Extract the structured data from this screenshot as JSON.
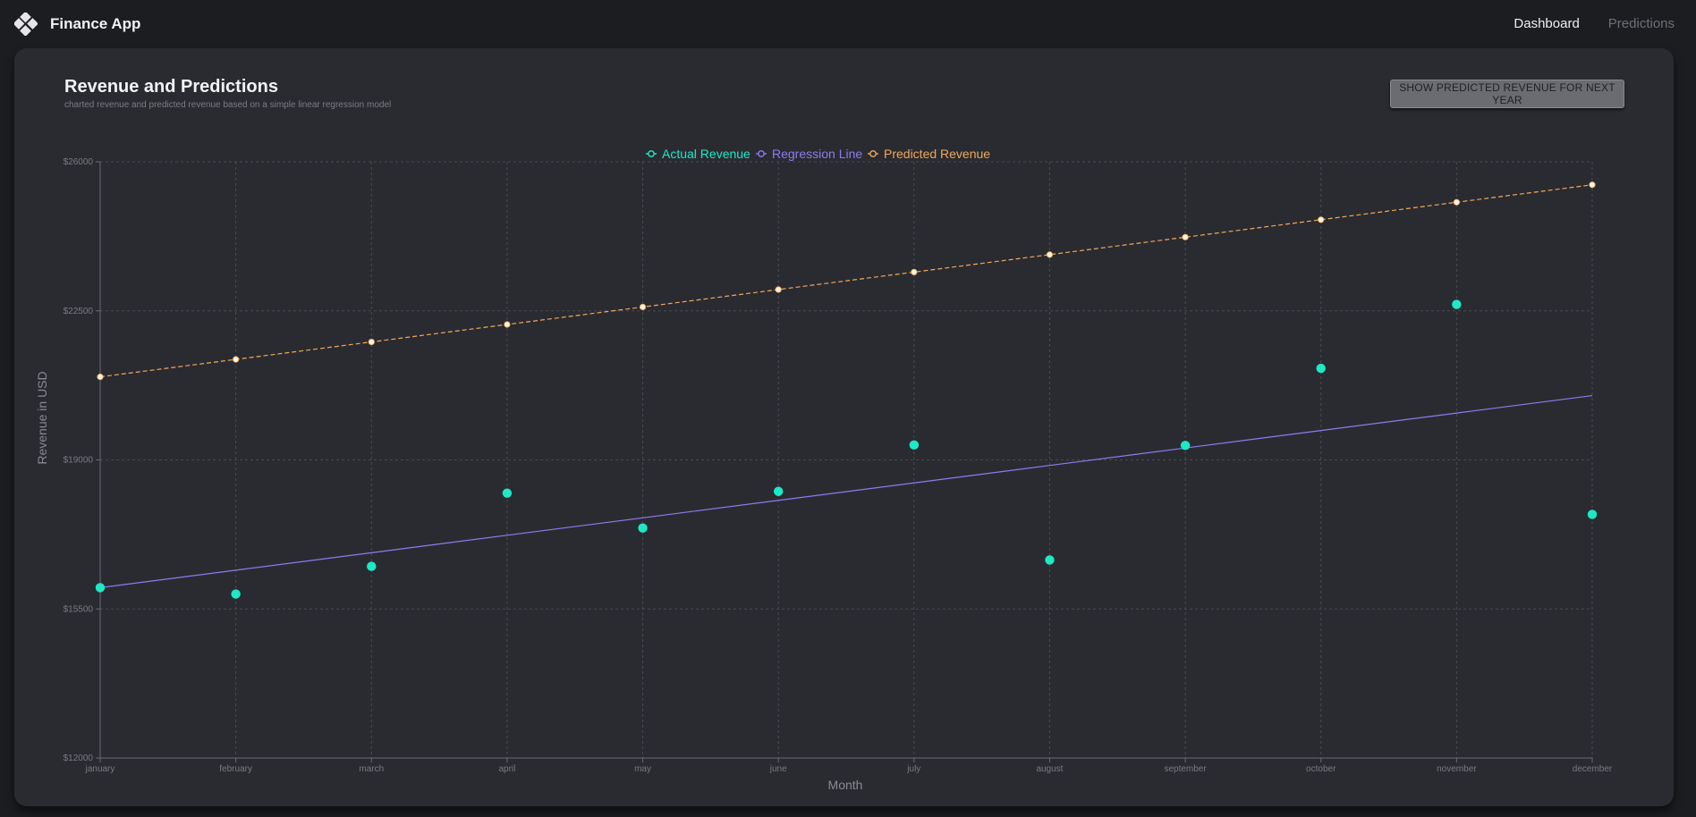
{
  "app": {
    "name": "Finance App",
    "logo_icon": "diamond-grid-icon"
  },
  "nav": {
    "items": [
      {
        "label": "Dashboard",
        "active": true
      },
      {
        "label": "Predictions",
        "active": false
      }
    ]
  },
  "card": {
    "title": "Revenue and Predictions",
    "subtitle": "charted revenue and predicted revenue based on a simple linear regression model",
    "button_label": "SHOW PREDICTED REVENUE FOR NEXT YEAR"
  },
  "chart_data": {
    "type": "line",
    "title": "",
    "xlabel": "Month",
    "ylabel": "Revenue in USD",
    "categories": [
      "january",
      "february",
      "march",
      "april",
      "may",
      "june",
      "july",
      "august",
      "september",
      "october",
      "november",
      "december"
    ],
    "ylim": [
      12000,
      26000
    ],
    "yticks": [
      12000,
      15500,
      19000,
      22500,
      26000
    ],
    "ytick_labels": [
      "$12000",
      "$15500",
      "$19000",
      "$22500",
      "$26000"
    ],
    "grid": true,
    "legend_position": "top-center",
    "series": [
      {
        "name": "Actual Revenue",
        "style": "points",
        "color": "#1de9c6",
        "values": [
          16000,
          15850,
          16500,
          18220,
          17400,
          18260,
          19350,
          16650,
          19340,
          21150,
          22650,
          17720
        ]
      },
      {
        "name": "Regression Line",
        "style": "line",
        "color": "#8c7cf0",
        "values": [
          16000,
          16410,
          16820,
          17230,
          17640,
          18050,
          18460,
          18870,
          19280,
          19690,
          20100,
          20510
        ]
      },
      {
        "name": "Predicted Revenue",
        "style": "dashed",
        "color": "#f0a85a",
        "marker_color": "#fdf2dc",
        "values": [
          20950,
          21360,
          21770,
          22180,
          22590,
          23000,
          23410,
          23820,
          24230,
          24640,
          25050,
          25460
        ]
      }
    ]
  }
}
